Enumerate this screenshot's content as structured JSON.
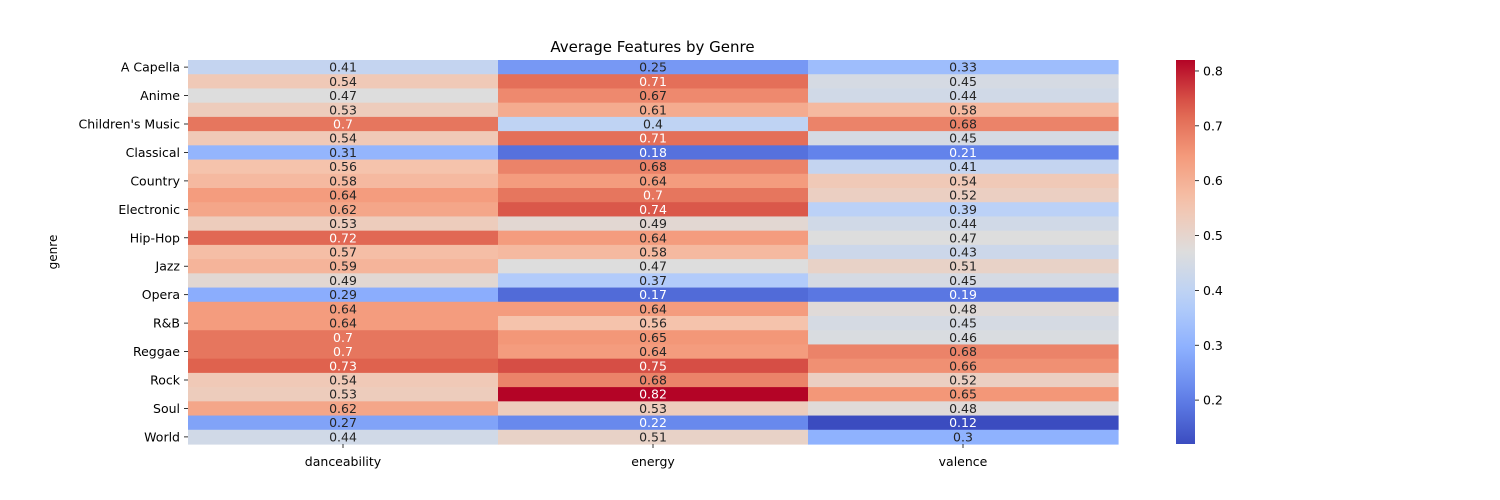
{
  "chart_data": {
    "type": "heatmap",
    "title": "Average Features by Genre",
    "xlabel": "",
    "ylabel": "genre",
    "columns": [
      "danceability",
      "energy",
      "valence"
    ],
    "row_tick_labels": [
      "A Capella",
      "Anime",
      "Children's Music",
      "Classical",
      "Country",
      "Electronic",
      "Hip-Hop",
      "Jazz",
      "Opera",
      "R&B",
      "Reggae",
      "Rock",
      "Soul",
      "World"
    ],
    "row_tick_every": 2,
    "values": [
      [
        0.41,
        0.25,
        0.33
      ],
      [
        0.54,
        0.71,
        0.45
      ],
      [
        0.47,
        0.67,
        0.44
      ],
      [
        0.53,
        0.61,
        0.58
      ],
      [
        0.7,
        0.4,
        0.68
      ],
      [
        0.54,
        0.71,
        0.45
      ],
      [
        0.31,
        0.18,
        0.21
      ],
      [
        0.56,
        0.68,
        0.41
      ],
      [
        0.58,
        0.64,
        0.54
      ],
      [
        0.64,
        0.7,
        0.52
      ],
      [
        0.62,
        0.74,
        0.39
      ],
      [
        0.53,
        0.49,
        0.44
      ],
      [
        0.72,
        0.64,
        0.47
      ],
      [
        0.57,
        0.58,
        0.43
      ],
      [
        0.59,
        0.47,
        0.51
      ],
      [
        0.49,
        0.37,
        0.45
      ],
      [
        0.29,
        0.17,
        0.19
      ],
      [
        0.64,
        0.64,
        0.48
      ],
      [
        0.64,
        0.56,
        0.45
      ],
      [
        0.7,
        0.65,
        0.46
      ],
      [
        0.7,
        0.64,
        0.68
      ],
      [
        0.73,
        0.75,
        0.66
      ],
      [
        0.54,
        0.68,
        0.52
      ],
      [
        0.53,
        0.82,
        0.65
      ],
      [
        0.62,
        0.53,
        0.48
      ],
      [
        0.27,
        0.22,
        0.12
      ],
      [
        0.44,
        0.51,
        0.3
      ]
    ],
    "colormap": "coolwarm",
    "color_range": [
      0.12,
      0.82
    ],
    "colorbar_ticks": [
      0.2,
      0.3,
      0.4,
      0.5,
      0.6,
      0.7,
      0.8
    ],
    "annotations": true,
    "grid": false
  }
}
